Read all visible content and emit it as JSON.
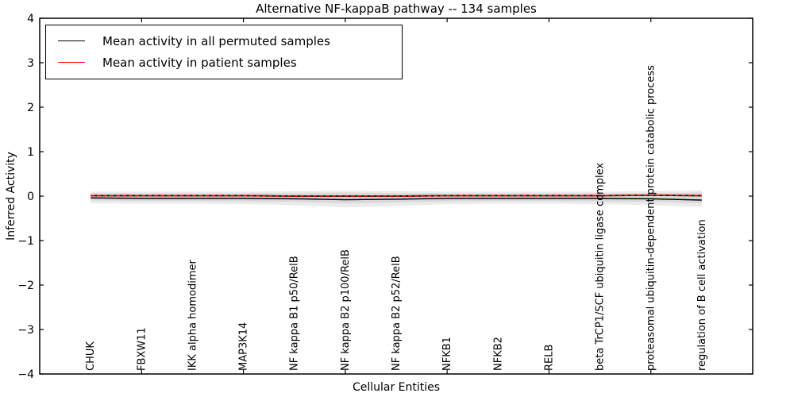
{
  "title": "Alternative NF-kappaB pathway -- 134 samples",
  "axes": {
    "xlabel": "Cellular Entities",
    "ylabel": "Inferred Activity"
  },
  "legend": {
    "entries": [
      {
        "label": "Mean activity in all permuted samples",
        "color": "#000000"
      },
      {
        "label": "Mean activity in patient samples",
        "color": "#ff0000"
      }
    ]
  },
  "colors": {
    "axis": "#000000",
    "permuted_line": "#000000",
    "patient_line": "#ff0000",
    "band_outer": "#ebebeb",
    "band_inner": "#d9d9d9"
  },
  "chart_data": {
    "type": "line",
    "title": "Alternative NF-kappaB pathway -- 134 samples",
    "xlabel": "Cellular Entities",
    "ylabel": "Inferred Activity",
    "xlim": [
      0,
      14
    ],
    "ylim": [
      -4,
      4
    ],
    "yticks": [
      -4,
      -3,
      -2,
      -1,
      0,
      1,
      2,
      3,
      4
    ],
    "frame_xticks_axis_units": [
      2,
      4,
      6,
      8,
      10,
      12
    ],
    "grid": false,
    "legend_position": "upper left",
    "categories": [
      "CHUK",
      "FBXW11",
      "IKK alpha homodimer",
      "MAP3K14",
      "NF kappa B1 p50/RelB",
      "NF kappa B2 p100/RelB",
      "NF kappa B2 p52/RelB",
      "NFKB1",
      "NFKB2",
      "RELB",
      "beta TrCP1/SCF ubiquitin ligase complex",
      "proteasomal ubiquitin-dependent protein catabolic process",
      "regulation of B cell activation"
    ],
    "series": [
      {
        "name": "Mean activity in all permuted samples",
        "color": "#000000",
        "style": "solid",
        "values": [
          -0.04,
          -0.05,
          -0.05,
          -0.05,
          -0.06,
          -0.08,
          -0.07,
          -0.05,
          -0.05,
          -0.05,
          -0.05,
          -0.06,
          -0.09
        ]
      },
      {
        "name": "Mean activity in patient samples",
        "color": "#ff0000",
        "style": "dashed",
        "values": [
          0.01,
          0.01,
          0.01,
          0.01,
          0.0,
          0.0,
          0.0,
          0.01,
          0.01,
          0.01,
          0.01,
          0.02,
          0.01
        ]
      }
    ],
    "bands": [
      {
        "name": "permutation-spread-outer",
        "color": "#ebebeb",
        "upper": [
          0.1,
          0.1,
          0.1,
          0.1,
          0.11,
          0.12,
          0.11,
          0.1,
          0.1,
          0.1,
          0.1,
          0.11,
          0.13
        ],
        "lower": [
          -0.16,
          -0.17,
          -0.17,
          -0.18,
          -0.2,
          -0.25,
          -0.22,
          -0.18,
          -0.17,
          -0.17,
          -0.18,
          -0.2,
          -0.25
        ]
      },
      {
        "name": "permutation-spread-inner",
        "color": "#d9d9d9",
        "upper": [
          0.06,
          0.06,
          0.06,
          0.06,
          0.07,
          0.08,
          0.07,
          0.06,
          0.06,
          0.06,
          0.06,
          0.07,
          0.08
        ],
        "lower": [
          -0.1,
          -0.11,
          -0.11,
          -0.12,
          -0.13,
          -0.16,
          -0.14,
          -0.12,
          -0.11,
          -0.11,
          -0.12,
          -0.13,
          -0.16
        ]
      }
    ]
  }
}
